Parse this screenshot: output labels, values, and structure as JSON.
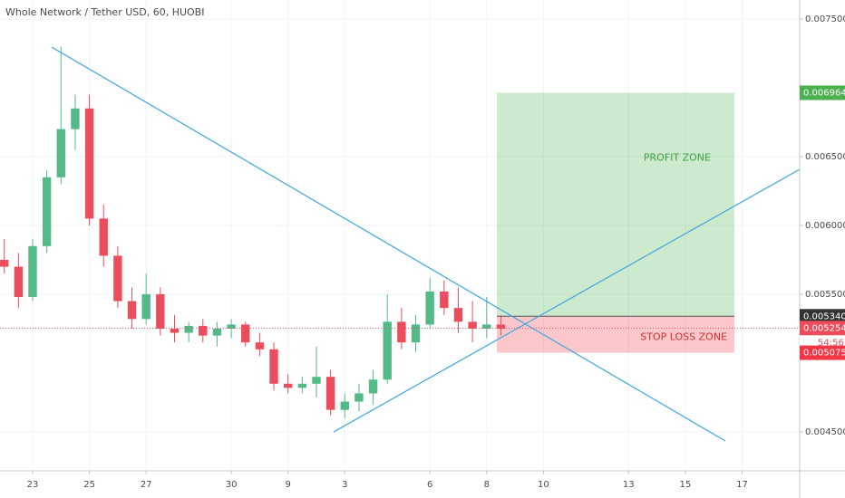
{
  "chart_data": {
    "type": "candlestick",
    "title": "Whole Network / Tether USD, 60, HUOBI",
    "x": [
      -1,
      -0.5,
      0,
      0.5,
      1,
      1.5,
      2,
      2.5,
      3,
      3.5,
      4,
      4.5,
      5,
      5.5,
      6,
      6.5,
      7,
      7.5,
      8,
      8.5,
      9,
      9.5,
      10,
      10.5,
      11,
      11.5,
      12,
      12.5,
      13,
      13.5,
      14,
      14.5,
      15,
      15.5,
      16,
      16.5
    ],
    "open": [
      0.00575,
      0.0057,
      0.00548,
      0.00585,
      0.00635,
      0.0067,
      0.00685,
      0.00605,
      0.00578,
      0.00545,
      0.00532,
      0.0055,
      0.00525,
      0.00522,
      0.00527,
      0.0052,
      0.00525,
      0.00528,
      0.00515,
      0.0051,
      0.00485,
      0.00482,
      0.00485,
      0.0049,
      0.00466,
      0.00472,
      0.00478,
      0.00488,
      0.0053,
      0.00515,
      0.00528,
      0.00552,
      0.0054,
      0.0053,
      0.00525,
      0.00528
    ],
    "high": [
      0.0059,
      0.0058,
      0.0059,
      0.0064,
      0.0073,
      0.00695,
      0.00695,
      0.00615,
      0.00585,
      0.00555,
      0.00565,
      0.00555,
      0.00535,
      0.0053,
      0.00532,
      0.0053,
      0.00532,
      0.0053,
      0.00522,
      0.00515,
      0.00492,
      0.0049,
      0.00512,
      0.00495,
      0.00478,
      0.00485,
      0.00495,
      0.0055,
      0.0054,
      0.00535,
      0.00562,
      0.0056,
      0.00555,
      0.00545,
      0.00548,
      0.00535
    ],
    "low": [
      0.00565,
      0.0054,
      0.00545,
      0.0058,
      0.0063,
      0.00655,
      0.006,
      0.0057,
      0.0054,
      0.00525,
      0.00528,
      0.0052,
      0.00515,
      0.00515,
      0.00515,
      0.00512,
      0.00518,
      0.00512,
      0.00505,
      0.0048,
      0.00478,
      0.00478,
      0.00475,
      0.00462,
      0.0046,
      0.00465,
      0.0047,
      0.00485,
      0.0051,
      0.00508,
      0.00525,
      0.00535,
      0.00522,
      0.00515,
      0.00518,
      0.0052
    ],
    "close": [
      0.0057,
      0.00548,
      0.00585,
      0.00635,
      0.0067,
      0.00685,
      0.00605,
      0.00578,
      0.00545,
      0.00532,
      0.0055,
      0.00525,
      0.00522,
      0.00527,
      0.0052,
      0.00525,
      0.00528,
      0.00515,
      0.0051,
      0.00485,
      0.00482,
      0.00485,
      0.0049,
      0.00466,
      0.00472,
      0.00478,
      0.00488,
      0.0053,
      0.00515,
      0.00528,
      0.00552,
      0.0054,
      0.0053,
      0.00525,
      0.00528,
      0.00525
    ],
    "up_color": "#53b987",
    "down_color": "#eb4d5c",
    "xlim": [
      -1.15,
      27.03
    ],
    "xticks": [
      {
        "value": 0,
        "label": "23"
      },
      {
        "value": 2,
        "label": "25"
      },
      {
        "value": 4,
        "label": "27"
      },
      {
        "value": 7,
        "label": "30"
      },
      9,
      {
        "value": 11,
        "label": "3"
      },
      {
        "value": 14,
        "label": "6"
      },
      {
        "value": 16,
        "label": "8"
      },
      {
        "value": 18,
        "label": "10"
      },
      {
        "value": 21,
        "label": "13"
      },
      {
        "value": 23,
        "label": "15"
      },
      {
        "value": 25,
        "label": "17"
      }
    ],
    "x_tick_labels_override": null,
    "ylim": [
      0.004217,
      0.007638
    ],
    "yticks": [
      {
        "value": 0.0045,
        "label": "0.004500"
      },
      {
        "value": 0.0055,
        "label": "0.005500"
      },
      {
        "value": 0.006,
        "label": "0.006000"
      },
      {
        "value": 0.0065,
        "label": "0.006500"
      },
      {
        "value": 0.0075,
        "label": "0.007500"
      }
    ],
    "grid": true,
    "trendlines": [
      {
        "x": [
          0.67,
          24.41
        ],
        "y": [
          0.007296,
          0.004434
        ],
        "color": "#3ca4e0"
      },
      {
        "x": [
          10.61,
          27.03
        ],
        "y": [
          0.0045,
          0.006408
        ],
        "color": "#3ca4e0"
      }
    ],
    "position": {
      "x": [
        16.36,
        24.73
      ],
      "entry": 0.00534,
      "target": 0.006964,
      "stop": 0.005075,
      "profit_label": "PROFIT ZONE",
      "stop_label": "STOP LOSS ZONE"
    },
    "price_labels": [
      {
        "value": 0.006964,
        "label": "0.006964",
        "color": "#4caf50"
      },
      {
        "value": 0.00534,
        "label": "0.005340",
        "color": "#333333"
      },
      {
        "value": 0.005254,
        "label": "0.005254",
        "color": "#eb4d5c"
      },
      {
        "value": 0.005075,
        "label": "0.005075",
        "color": "#f23645"
      }
    ],
    "current_price": 0.005254,
    "countdown": "54:56"
  }
}
